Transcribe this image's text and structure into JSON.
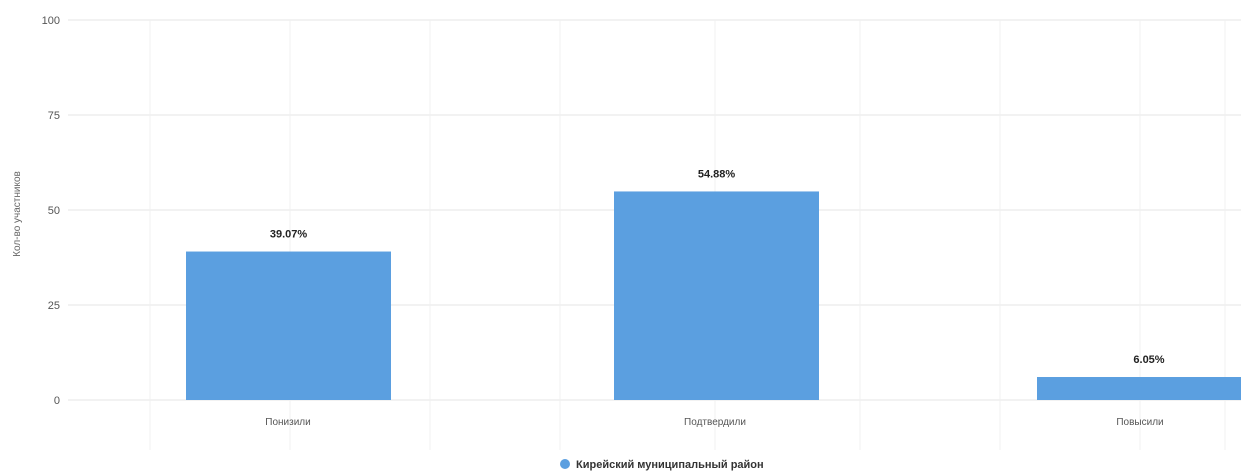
{
  "chart_data": {
    "type": "bar",
    "categories": [
      "Понизили",
      "Подтвердили",
      "Повысили"
    ],
    "series": [
      {
        "name": "Кирейский муниципальный район",
        "values": [
          39.07,
          54.88,
          6.05
        ],
        "labels": [
          "39.07%",
          "54.88%",
          "6.05%"
        ],
        "color": "#5b9fe0"
      }
    ],
    "ylabel": "Кол-во участников",
    "ylim": [
      0,
      100
    ],
    "yticks": [
      0,
      25,
      50,
      75,
      100
    ],
    "ytick_labels": [
      "0",
      "25",
      "50",
      "75",
      "100"
    ],
    "grid": true,
    "legend_position": "bottom-center"
  }
}
